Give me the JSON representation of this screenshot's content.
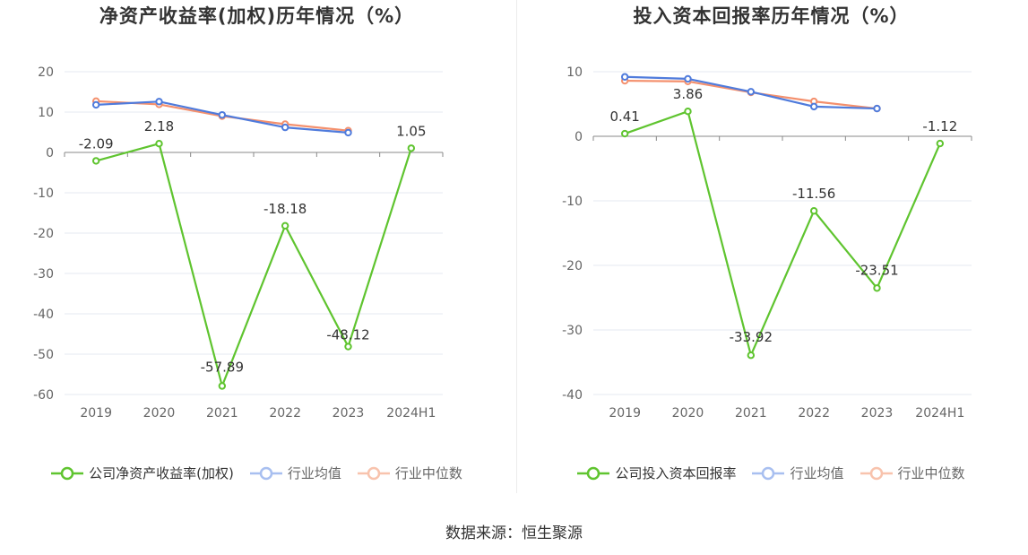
{
  "source": "数据来源：恒生聚源",
  "chart_data": [
    {
      "type": "line",
      "title": "净资产收益率(加权)历年情况（%）",
      "categories": [
        "2019",
        "2020",
        "2021",
        "2022",
        "2023",
        "2024H1"
      ],
      "yticks": [
        20,
        10,
        0,
        -10,
        -20,
        -30,
        -40,
        -50,
        -60
      ],
      "ylim": [
        -60,
        20
      ],
      "grid": true,
      "legend_position": "bottom",
      "series": [
        {
          "name": "公司净资产收益率(加权)",
          "color": "#5fc42f",
          "values": [
            -2.09,
            2.18,
            -57.89,
            -18.18,
            -48.12,
            1.05
          ],
          "labels": [
            "-2.09",
            "2.18",
            "-57.89",
            "-18.18",
            "-48.12",
            "1.05"
          ]
        },
        {
          "name": "行业均值",
          "color": "#4f7bdc",
          "values": [
            11.8,
            12.6,
            9.3,
            6.2,
            4.9,
            null
          ]
        },
        {
          "name": "行业中位数",
          "color": "#f4906d",
          "values": [
            12.7,
            11.9,
            9.0,
            7.0,
            5.4,
            null
          ]
        }
      ]
    },
    {
      "type": "line",
      "title": "投入资本回报率历年情况（%）",
      "categories": [
        "2019",
        "2020",
        "2021",
        "2022",
        "2023",
        "2024H1"
      ],
      "yticks": [
        10,
        0,
        -10,
        -20,
        -30,
        -40
      ],
      "ylim": [
        -40,
        10
      ],
      "grid": true,
      "legend_position": "bottom",
      "series": [
        {
          "name": "公司投入资本回报率",
          "color": "#5fc42f",
          "values": [
            0.41,
            3.86,
            -33.92,
            -11.56,
            -23.51,
            -1.12
          ],
          "labels": [
            "0.41",
            "3.86",
            "-33.92",
            "-11.56",
            "-23.51",
            "-1.12"
          ]
        },
        {
          "name": "行业均值",
          "color": "#4f7bdc",
          "values": [
            9.2,
            8.9,
            6.9,
            4.6,
            4.3,
            null
          ]
        },
        {
          "name": "行业中位数",
          "color": "#f4906d",
          "values": [
            8.6,
            8.5,
            6.8,
            5.4,
            4.3,
            null
          ]
        }
      ]
    }
  ]
}
